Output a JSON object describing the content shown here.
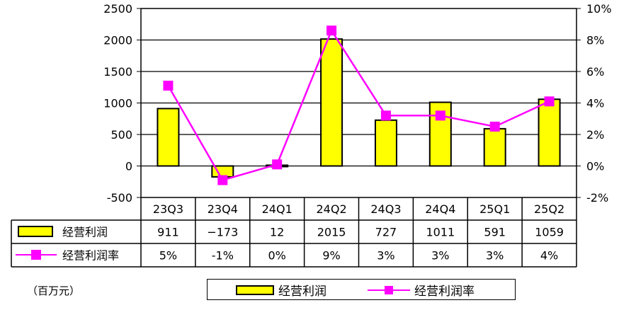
{
  "chart_data": {
    "type": "bar",
    "categories": [
      "23Q3",
      "23Q4",
      "24Q1",
      "24Q2",
      "24Q3",
      "24Q4",
      "25Q1",
      "25Q2"
    ],
    "series": [
      {
        "name": "经营利润",
        "type": "bar",
        "axis": "left",
        "color": "#ffff00",
        "values": [
          911,
          -173,
          12,
          2015,
          727,
          1011,
          591,
          1059
        ],
        "table_labels": [
          "911",
          "−173",
          "12",
          "2015",
          "727",
          "1011",
          "591",
          "1059"
        ]
      },
      {
        "name": "经营利润率",
        "type": "line",
        "axis": "right",
        "color": "#ff00ff",
        "values": [
          5.1,
          -0.9,
          0.1,
          8.6,
          3.2,
          3.2,
          2.5,
          4.1
        ],
        "table_labels": [
          "5%",
          "-1%",
          "0%",
          "9%",
          "3%",
          "3%",
          "3%",
          "4%"
        ]
      }
    ],
    "y_left": {
      "min": -500,
      "max": 2500,
      "step": 500,
      "tick_labels": [
        "-500",
        "0",
        "500",
        "1000",
        "1500",
        "2000",
        "2500"
      ]
    },
    "y_right": {
      "min": -2,
      "max": 10,
      "step": 2,
      "tick_labels": [
        "-2%",
        "0%",
        "2%",
        "4%",
        "6%",
        "8%",
        "10%"
      ]
    },
    "grid": true,
    "legend": "bottom",
    "data_table": true
  },
  "unit_label": "（百万元）"
}
